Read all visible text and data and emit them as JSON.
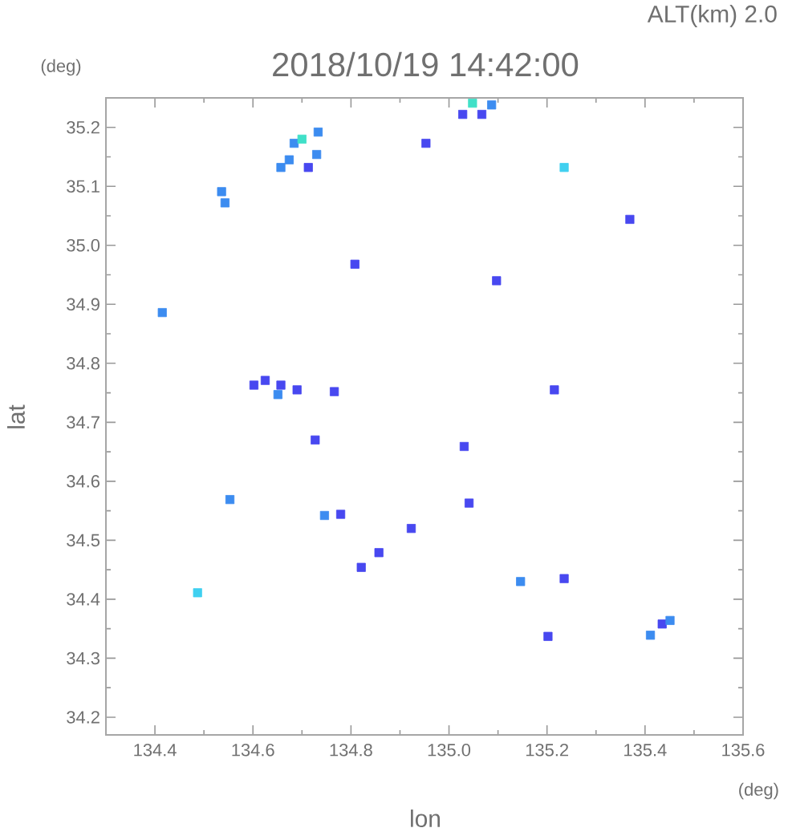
{
  "chart_data": {
    "type": "scatter",
    "title": "2018/10/19 14:42:00",
    "subtitle": "ALT(km) 2.0",
    "xlabel": "lon",
    "ylabel": "lat",
    "annotations": [
      "(deg)",
      "(deg)"
    ],
    "marker": "square",
    "x": [
      135.028,
      135.067,
      135.048,
      135.087,
      134.684,
      134.7,
      134.733,
      134.657,
      134.674,
      134.73,
      134.713,
      134.536,
      134.543,
      134.953,
      135.235,
      135.369,
      134.808,
      135.097,
      134.415,
      134.602,
      134.625,
      134.657,
      134.651,
      134.69,
      134.766,
      135.215,
      134.727,
      135.031,
      134.553,
      134.746,
      134.779,
      135.041,
      134.923,
      134.857,
      134.821,
      134.487,
      135.146,
      135.235,
      135.202,
      135.411,
      135.435,
      135.451
    ],
    "values": [
      35.222,
      35.222,
      35.241,
      35.238,
      35.173,
      35.18,
      35.192,
      35.132,
      35.145,
      35.154,
      35.132,
      35.091,
      35.072,
      35.173,
      35.132,
      35.044,
      34.968,
      34.94,
      34.886,
      34.763,
      34.771,
      34.763,
      34.747,
      34.755,
      34.752,
      34.755,
      34.67,
      34.659,
      34.569,
      34.542,
      34.544,
      34.563,
      34.52,
      34.479,
      34.454,
      34.411,
      34.43,
      34.435,
      34.337,
      34.339,
      34.358,
      34.364
    ],
    "colors": [
      "#4848f0",
      "#4848f0",
      "#40e0c8",
      "#3c8cf0",
      "#3c8cf0",
      "#40e0c8",
      "#3c8cf0",
      "#3c8cf0",
      "#3c8cf0",
      "#3c8cf0",
      "#4848f0",
      "#3c8cf0",
      "#3c8cf0",
      "#4848f0",
      "#40d0f0",
      "#4848f0",
      "#4848f0",
      "#4848f0",
      "#3c8cf0",
      "#4848f0",
      "#4848f0",
      "#4848f0",
      "#3c8cf0",
      "#4848f0",
      "#4848f0",
      "#4848f0",
      "#4848f0",
      "#4848f0",
      "#3c8cf0",
      "#3c8cf0",
      "#4848f0",
      "#4848f0",
      "#4848f0",
      "#4848f0",
      "#4848f0",
      "#40d0f0",
      "#3c8cf0",
      "#4848f0",
      "#4848f0",
      "#3c8cf0",
      "#4848f0",
      "#3c8cf0"
    ],
    "xlim": [
      134.3,
      135.6
    ],
    "ylim": [
      34.17,
      35.25
    ],
    "xticks": [
      134.4,
      134.6,
      134.8,
      {
        "value": 135.0,
        "label": "135.0"
      },
      135.2,
      135.4,
      135.6
    ],
    "yticks": [
      34.2,
      34.3,
      34.4,
      34.5,
      34.6,
      34.7,
      34.8,
      34.9,
      {
        "value": 35.0,
        "label": "35.0"
      },
      35.1,
      35.2
    ]
  }
}
